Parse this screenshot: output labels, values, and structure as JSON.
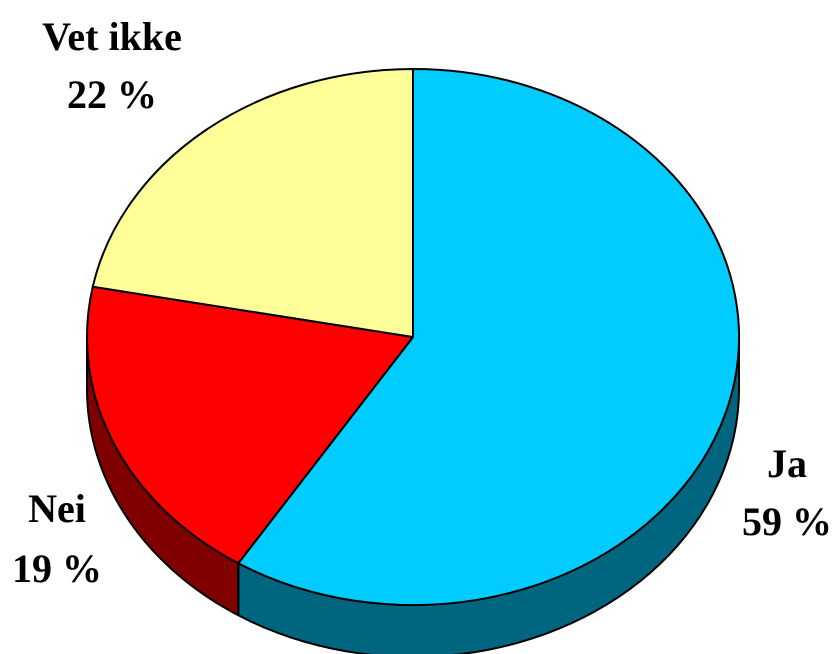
{
  "chart_data": {
    "type": "pie",
    "style": "3d",
    "categories": [
      "Ja",
      "Nei",
      "Vet ikke"
    ],
    "values": [
      59,
      19,
      22
    ],
    "value_labels": [
      "59 %",
      "19 %",
      "22 %"
    ],
    "colors": [
      "#00CCFF",
      "#FF0000",
      "#FFFF99"
    ],
    "side_colors": [
      "#006680",
      "#800000",
      "#808050"
    ],
    "start_angle_deg": 90,
    "direction": "clockwise",
    "legend": "none"
  }
}
